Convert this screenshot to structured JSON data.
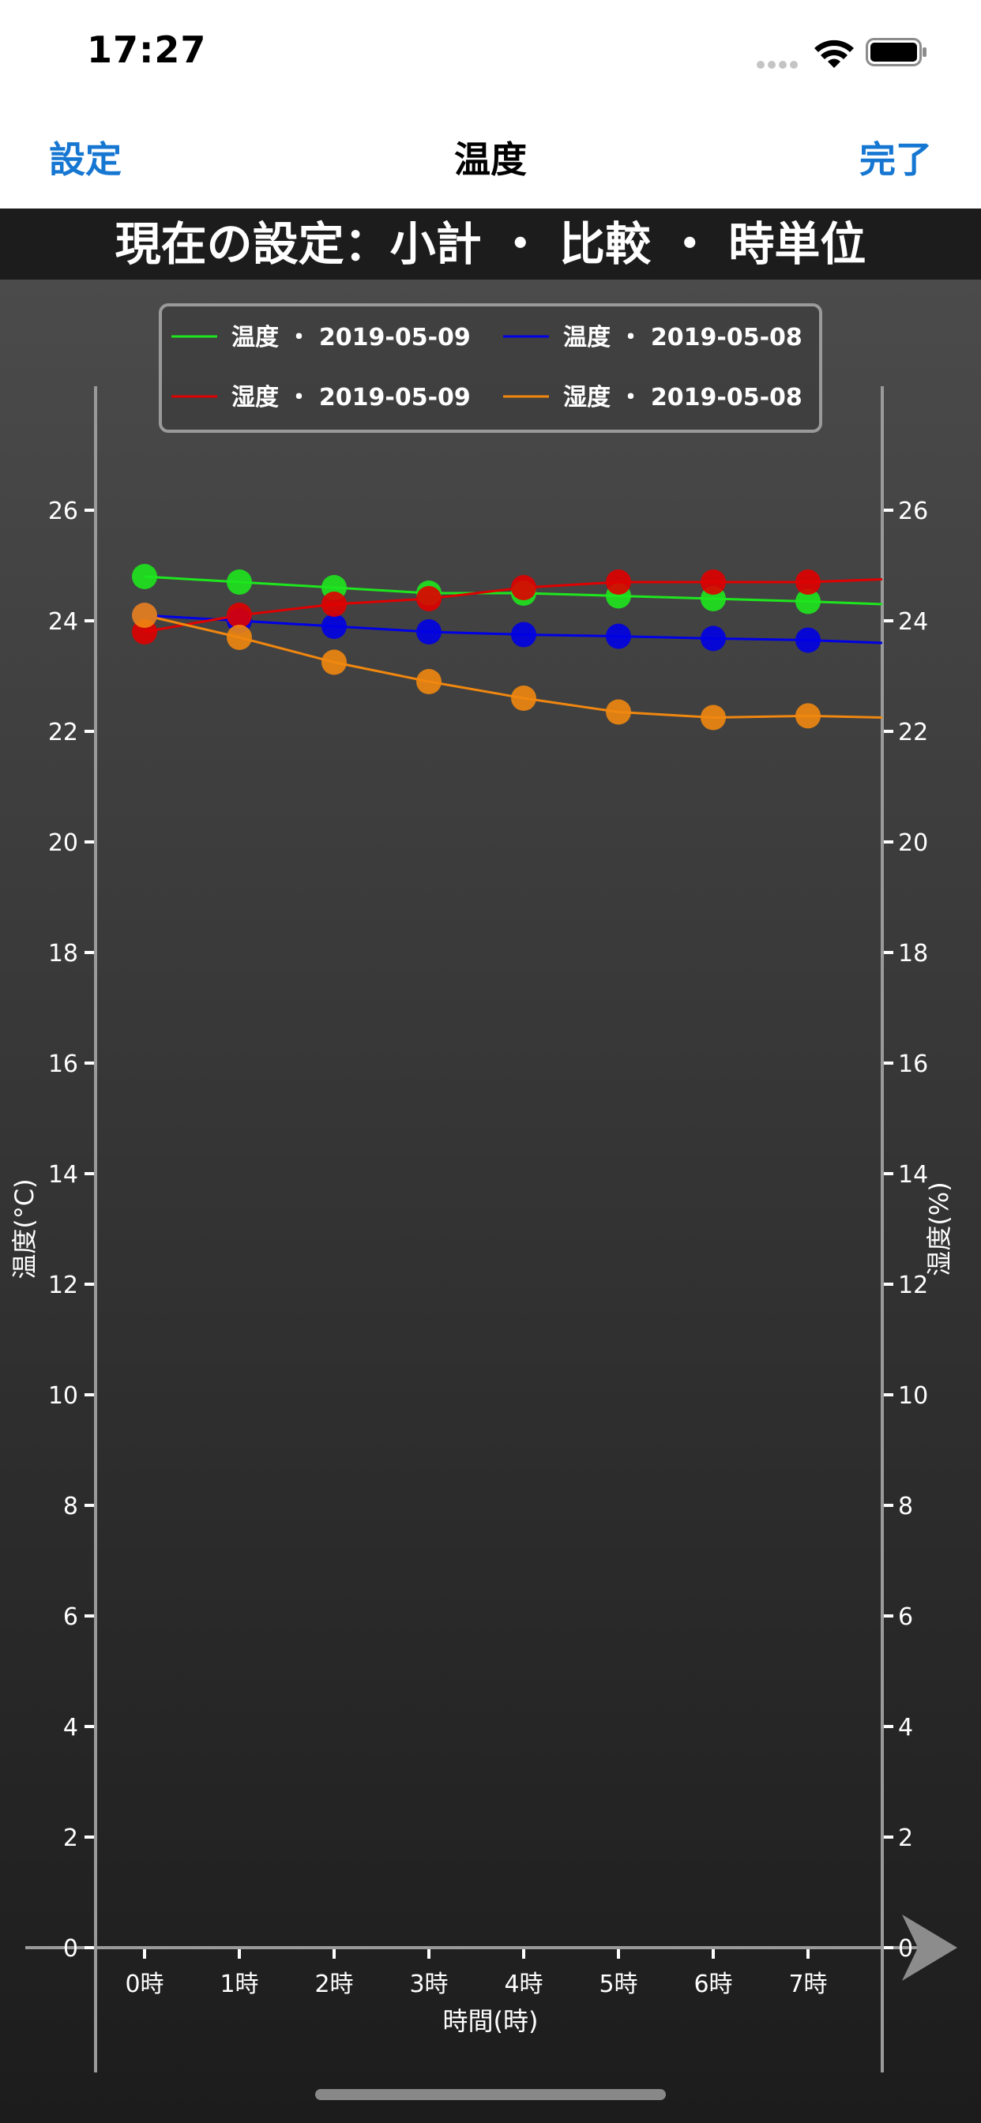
{
  "status": {
    "time": "17:27"
  },
  "nav": {
    "left": "設定",
    "title": "温度",
    "right": "完了"
  },
  "banner": "現在の設定：小計 ・ 比較 ・ 時単位",
  "chart_data": {
    "type": "line",
    "categories": [
      "0時",
      "1時",
      "2時",
      "3時",
      "4時",
      "5時",
      "6時",
      "7時"
    ],
    "xlabel": "時間(時)",
    "ylabel_left": "温度(°C)",
    "ylabel_right": "湿度(%)",
    "ylim": [
      0,
      26
    ],
    "yticks": [
      0,
      2,
      4,
      6,
      8,
      10,
      12,
      14,
      16,
      18,
      20,
      22,
      24,
      26
    ],
    "legend_position": "top",
    "series": [
      {
        "name": "温度 ・ 2019-05-09",
        "color": "#1ee61e",
        "values": [
          24.8,
          24.7,
          24.6,
          24.5,
          24.5,
          24.45,
          24.4,
          24.35
        ],
        "end": 24.3
      },
      {
        "name": "温度 ・ 2019-05-08",
        "color": "#0000e6",
        "values": [
          24.1,
          24.0,
          23.9,
          23.8,
          23.75,
          23.72,
          23.68,
          23.65
        ],
        "end": 23.6
      },
      {
        "name": "湿度 ・ 2019-05-09",
        "color": "#e00000",
        "values": [
          23.8,
          24.1,
          24.3,
          24.4,
          24.6,
          24.7,
          24.7,
          24.7
        ],
        "end": 24.75
      },
      {
        "name": "湿度 ・ 2019-05-08",
        "color": "#f0870f",
        "values": [
          24.1,
          23.7,
          23.25,
          22.9,
          22.6,
          22.35,
          22.25,
          22.28
        ],
        "end": 22.25
      }
    ]
  }
}
